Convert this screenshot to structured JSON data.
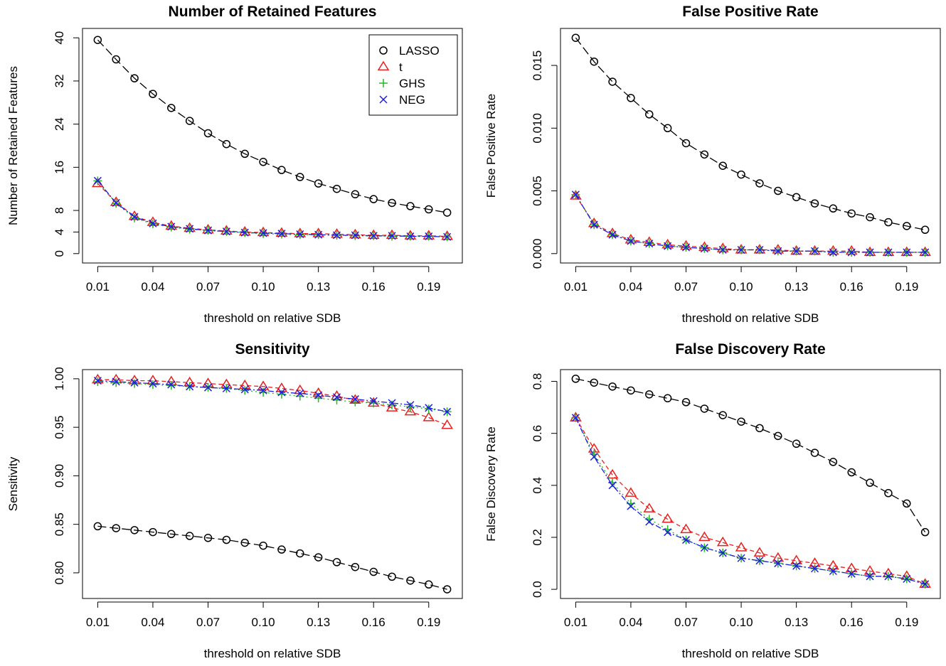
{
  "chart_data": [
    {
      "type": "line",
      "title": "Number of Retained Features",
      "xlabel": "threshold on relative SDB",
      "ylabel": "Number of Retained Features",
      "xlim": [
        0.01,
        0.2
      ],
      "ylim": [
        0,
        40
      ],
      "xticks": [
        0.01,
        0.04,
        0.07,
        0.1,
        0.13,
        0.16,
        0.19
      ],
      "xtick_labels": [
        "0.01",
        "0.04",
        "0.07",
        "0.10",
        "0.13",
        "0.16",
        "0.19"
      ],
      "yticks": [
        0,
        4,
        8,
        16,
        24,
        32,
        40
      ],
      "ytick_labels": [
        "0",
        "4",
        "8",
        "16",
        "24",
        "32",
        "40"
      ],
      "legend": "top-right",
      "x": [
        0.01,
        0.02,
        0.03,
        0.04,
        0.05,
        0.06,
        0.07,
        0.08,
        0.09,
        0.1,
        0.11,
        0.12,
        0.13,
        0.14,
        0.15,
        0.16,
        0.17,
        0.18,
        0.19,
        0.2
      ],
      "series": [
        {
          "name": "LASSO",
          "marker": "circle",
          "color": "#000000",
          "dash": "12,5",
          "values": [
            39.6,
            36.0,
            32.5,
            29.6,
            27.0,
            24.6,
            22.3,
            20.3,
            18.5,
            17.0,
            15.5,
            14.2,
            13.0,
            12.0,
            11.0,
            10.1,
            9.4,
            8.8,
            8.2,
            7.6
          ]
        },
        {
          "name": "t",
          "marker": "triangle",
          "color": "#e8201e",
          "dash": "6,4",
          "values": [
            13.0,
            9.5,
            6.9,
            5.8,
            5.1,
            4.7,
            4.4,
            4.2,
            4.0,
            3.9,
            3.8,
            3.7,
            3.7,
            3.6,
            3.5,
            3.4,
            3.4,
            3.3,
            3.3,
            3.2
          ]
        },
        {
          "name": "GHS",
          "marker": "plus",
          "color": "#22b822",
          "dash": "2,4",
          "values": [
            13.5,
            9.3,
            6.6,
            5.5,
            4.9,
            4.5,
            4.3,
            4.1,
            3.9,
            3.7,
            3.6,
            3.5,
            3.5,
            3.4,
            3.3,
            3.3,
            3.2,
            3.2,
            3.2,
            3.1
          ]
        },
        {
          "name": "NEG",
          "marker": "cross",
          "color": "#1e1ee0",
          "dash": "8,3,2,3",
          "values": [
            13.5,
            9.4,
            6.8,
            5.6,
            5.0,
            4.6,
            4.3,
            4.1,
            3.9,
            3.8,
            3.7,
            3.6,
            3.5,
            3.4,
            3.4,
            3.3,
            3.3,
            3.2,
            3.2,
            3.1
          ]
        }
      ]
    },
    {
      "type": "line",
      "title": "False Positive Rate",
      "xlabel": "threshold on relative SDB",
      "ylabel": "False Positive Rate",
      "xlim": [
        0.01,
        0.2
      ],
      "ylim": [
        0,
        0.0172
      ],
      "xticks": [
        0.01,
        0.04,
        0.07,
        0.1,
        0.13,
        0.16,
        0.19
      ],
      "xtick_labels": [
        "0.01",
        "0.04",
        "0.07",
        "0.10",
        "0.13",
        "0.16",
        "0.19"
      ],
      "yticks": [
        0,
        0.005,
        0.01,
        0.015
      ],
      "ytick_labels": [
        "0.000",
        "0.005",
        "0.010",
        "0.015"
      ],
      "x": [
        0.01,
        0.02,
        0.03,
        0.04,
        0.05,
        0.06,
        0.07,
        0.08,
        0.09,
        0.1,
        0.11,
        0.12,
        0.13,
        0.14,
        0.15,
        0.16,
        0.17,
        0.18,
        0.19,
        0.2
      ],
      "series": [
        {
          "name": "LASSO",
          "marker": "circle",
          "color": "#000000",
          "dash": "12,5",
          "values": [
            0.0172,
            0.0153,
            0.0137,
            0.0124,
            0.0111,
            0.01,
            0.0088,
            0.0079,
            0.007,
            0.0063,
            0.0056,
            0.005,
            0.0045,
            0.004,
            0.0036,
            0.0032,
            0.0029,
            0.0025,
            0.0022,
            0.0019
          ]
        },
        {
          "name": "t",
          "marker": "triangle",
          "color": "#e8201e",
          "dash": "6,4",
          "values": [
            0.0046,
            0.0024,
            0.0016,
            0.0011,
            0.0009,
            0.0007,
            0.0006,
            0.0005,
            0.0004,
            0.0003,
            0.0003,
            0.0003,
            0.0002,
            0.0002,
            0.0002,
            0.0002,
            0.0001,
            0.0001,
            0.0001,
            0.0001
          ]
        },
        {
          "name": "GHS",
          "marker": "plus",
          "color": "#22b822",
          "dash": "2,4",
          "values": [
            0.0047,
            0.0023,
            0.0015,
            0.001,
            0.0008,
            0.0006,
            0.0005,
            0.0004,
            0.0003,
            0.0003,
            0.0003,
            0.0002,
            0.0002,
            0.0002,
            0.0001,
            0.0001,
            0.0001,
            0.0001,
            0.0001,
            0.0001
          ]
        },
        {
          "name": "NEG",
          "marker": "cross",
          "color": "#1e1ee0",
          "dash": "8,3,2,3",
          "values": [
            0.0047,
            0.0023,
            0.0015,
            0.001,
            0.0008,
            0.0006,
            0.0005,
            0.0004,
            0.0003,
            0.0003,
            0.0003,
            0.0002,
            0.0002,
            0.0002,
            0.0001,
            0.0001,
            0.0001,
            0.0001,
            0.0001,
            0.0001
          ]
        }
      ]
    },
    {
      "type": "line",
      "title": "Sensitivity",
      "xlabel": "threshold on relative SDB",
      "ylabel": "Sensitivity",
      "xlim": [
        0.01,
        0.2
      ],
      "ylim": [
        0.783,
        1.0
      ],
      "xticks": [
        0.01,
        0.04,
        0.07,
        0.1,
        0.13,
        0.16,
        0.19
      ],
      "xtick_labels": [
        "0.01",
        "0.04",
        "0.07",
        "0.10",
        "0.13",
        "0.16",
        "0.19"
      ],
      "yticks": [
        0.8,
        0.85,
        0.9,
        0.95,
        1.0
      ],
      "ytick_labels": [
        "0.80",
        "0.85",
        "0.90",
        "0.95",
        "1.00"
      ],
      "x": [
        0.01,
        0.02,
        0.03,
        0.04,
        0.05,
        0.06,
        0.07,
        0.08,
        0.09,
        0.1,
        0.11,
        0.12,
        0.13,
        0.14,
        0.15,
        0.16,
        0.17,
        0.18,
        0.19,
        0.2
      ],
      "series": [
        {
          "name": "LASSO",
          "marker": "circle",
          "color": "#000000",
          "dash": "12,5",
          "values": [
            0.848,
            0.846,
            0.844,
            0.842,
            0.84,
            0.838,
            0.836,
            0.834,
            0.831,
            0.828,
            0.824,
            0.82,
            0.816,
            0.811,
            0.806,
            0.801,
            0.796,
            0.792,
            0.788,
            0.783
          ]
        },
        {
          "name": "t",
          "marker": "triangle",
          "color": "#e8201e",
          "dash": "6,4",
          "values": [
            0.999,
            0.999,
            0.998,
            0.998,
            0.997,
            0.996,
            0.995,
            0.994,
            0.993,
            0.992,
            0.99,
            0.988,
            0.985,
            0.982,
            0.978,
            0.975,
            0.97,
            0.966,
            0.96,
            0.952
          ]
        },
        {
          "name": "GHS",
          "marker": "plus",
          "color": "#22b822",
          "dash": "2,4",
          "values": [
            0.997,
            0.996,
            0.995,
            0.994,
            0.993,
            0.992,
            0.991,
            0.99,
            0.988,
            0.986,
            0.984,
            0.982,
            0.98,
            0.978,
            0.976,
            0.975,
            0.973,
            0.971,
            0.969,
            0.966
          ]
        },
        {
          "name": "NEG",
          "marker": "cross",
          "color": "#1e1ee0",
          "dash": "8,3,2,3",
          "values": [
            0.998,
            0.997,
            0.996,
            0.995,
            0.994,
            0.992,
            0.991,
            0.99,
            0.989,
            0.988,
            0.986,
            0.985,
            0.983,
            0.981,
            0.979,
            0.977,
            0.975,
            0.973,
            0.97,
            0.966
          ]
        }
      ]
    },
    {
      "type": "line",
      "title": "False Discovery Rate",
      "xlabel": "threshold on relative SDB",
      "ylabel": "False Discovery Rate",
      "xlim": [
        0.01,
        0.2
      ],
      "ylim": [
        0,
        0.81
      ],
      "xticks": [
        0.01,
        0.04,
        0.07,
        0.1,
        0.13,
        0.16,
        0.19
      ],
      "xtick_labels": [
        "0.01",
        "0.04",
        "0.07",
        "0.10",
        "0.13",
        "0.16",
        "0.19"
      ],
      "yticks": [
        0,
        0.2,
        0.4,
        0.6,
        0.8
      ],
      "ytick_labels": [
        "0.0",
        "0.2",
        "0.4",
        "0.6",
        "0.8"
      ],
      "x": [
        0.01,
        0.02,
        0.03,
        0.04,
        0.05,
        0.06,
        0.07,
        0.08,
        0.09,
        0.1,
        0.11,
        0.12,
        0.13,
        0.14,
        0.15,
        0.16,
        0.17,
        0.18,
        0.19,
        0.2
      ],
      "series": [
        {
          "name": "LASSO",
          "marker": "circle",
          "color": "#000000",
          "dash": "12,5",
          "values": [
            0.81,
            0.795,
            0.78,
            0.765,
            0.75,
            0.735,
            0.72,
            0.695,
            0.67,
            0.645,
            0.62,
            0.59,
            0.56,
            0.525,
            0.49,
            0.45,
            0.41,
            0.37,
            0.33,
            0.22
          ]
        },
        {
          "name": "t",
          "marker": "triangle",
          "color": "#e8201e",
          "dash": "6,4",
          "values": [
            0.66,
            0.54,
            0.44,
            0.37,
            0.31,
            0.27,
            0.23,
            0.2,
            0.18,
            0.16,
            0.14,
            0.12,
            0.11,
            0.1,
            0.09,
            0.08,
            0.07,
            0.06,
            0.05,
            0.02
          ]
        },
        {
          "name": "GHS",
          "marker": "plus",
          "color": "#22b822",
          "dash": "2,4",
          "values": [
            0.66,
            0.52,
            0.41,
            0.33,
            0.27,
            0.23,
            0.19,
            0.16,
            0.14,
            0.12,
            0.11,
            0.1,
            0.09,
            0.08,
            0.07,
            0.06,
            0.05,
            0.05,
            0.04,
            0.02
          ]
        },
        {
          "name": "NEG",
          "marker": "cross",
          "color": "#1e1ee0",
          "dash": "8,3,2,3",
          "values": [
            0.66,
            0.51,
            0.4,
            0.32,
            0.26,
            0.22,
            0.19,
            0.16,
            0.14,
            0.12,
            0.11,
            0.1,
            0.09,
            0.08,
            0.07,
            0.06,
            0.05,
            0.05,
            0.04,
            0.02
          ]
        }
      ]
    }
  ]
}
